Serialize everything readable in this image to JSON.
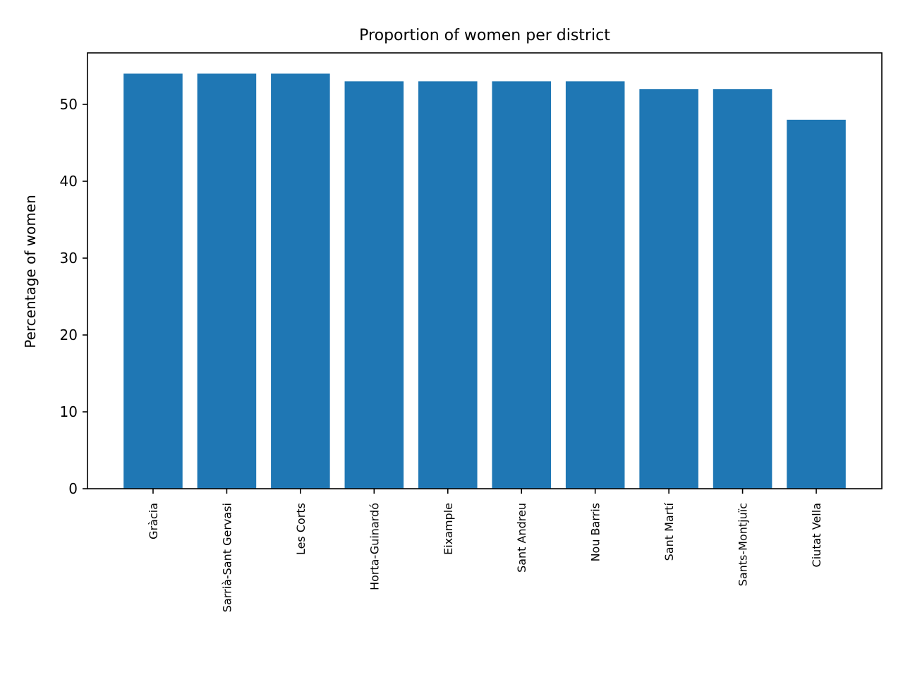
{
  "chart_data": {
    "type": "bar",
    "title": "Proportion of women per district",
    "xlabel": "",
    "ylabel": "Percentage of women",
    "categories": [
      "Gràcia",
      "Sarrià-Sant Gervasi",
      "Les Corts",
      "Horta-Guinardó",
      "Eixample",
      "Sant Andreu",
      "Nou Barris",
      "Sant Martí",
      "Sants-Montjuïc",
      "Ciutat Vella"
    ],
    "values": [
      54,
      54,
      54,
      53,
      53,
      53,
      53,
      52,
      52,
      48
    ],
    "ylim": [
      0,
      56.7
    ],
    "yticks": [
      0,
      10,
      20,
      30,
      40,
      50
    ],
    "grid": false,
    "bar_color": "#1f77b4"
  }
}
